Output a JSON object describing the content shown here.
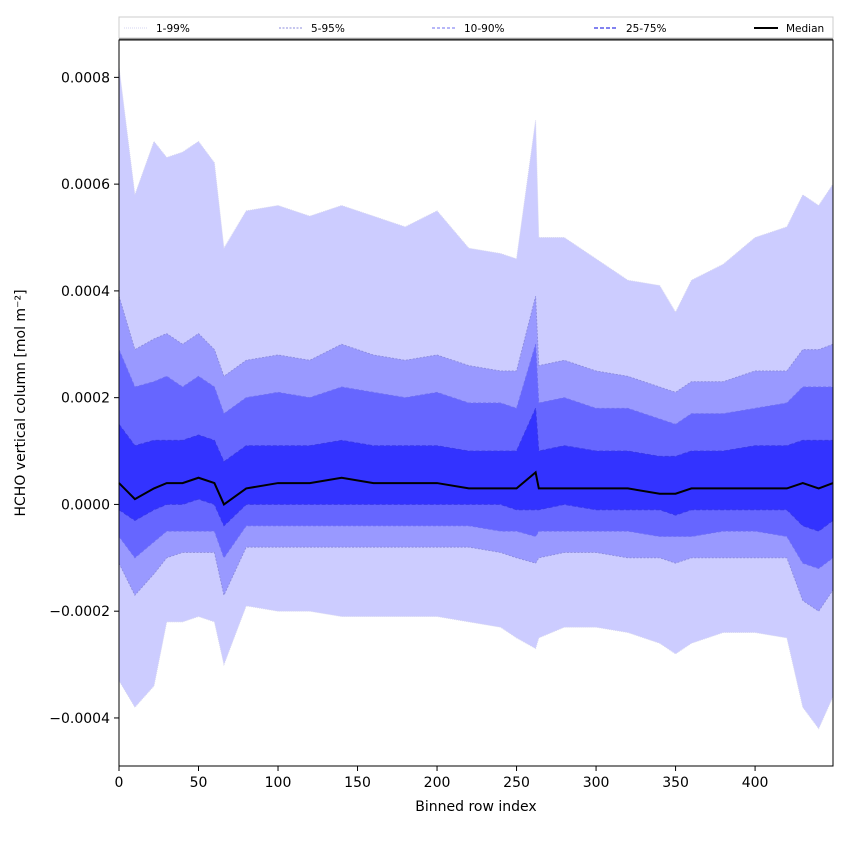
{
  "chart_data": {
    "type": "area",
    "xlabel": "Binned row index",
    "ylabel": "HCHO vertical column [mol m⁻²]",
    "xlim": [
      0,
      449
    ],
    "ylim": [
      -0.00049,
      0.00087
    ],
    "x_ticks": [
      0,
      50,
      100,
      150,
      200,
      250,
      300,
      350,
      400
    ],
    "y_ticks": [
      -0.0004,
      -0.0002,
      0.0,
      0.0002,
      0.0004,
      0.0006,
      0.0008
    ],
    "y_tick_labels": [
      "−0.0004",
      "−0.0002",
      "0.0000",
      "0.0002",
      "0.0004",
      "0.0006",
      "0.0008"
    ],
    "grid": false,
    "legend_position": "top, spanning full width",
    "legend": [
      "1-99%",
      "5-95%",
      "10-90%",
      "25-75%",
      "Median"
    ],
    "colors": {
      "band_1_99": "#ccccff",
      "band_5_95": "#9999ff",
      "band_10_90": "#6666ff",
      "band_25_75": "#3333ff",
      "median": "#000000",
      "line_1_99": "#d6d6f0",
      "line_5_95": "#8c8cdd",
      "line_10_90": "#6f6ff2",
      "line_25_75": "#3838e8"
    },
    "series": [
      {
        "name": "1-99%",
        "x": [
          0,
          10,
          22,
          30,
          40,
          50,
          60,
          66,
          80,
          100,
          120,
          140,
          160,
          180,
          200,
          220,
          240,
          250,
          262,
          264,
          280,
          300,
          320,
          340,
          350,
          360,
          380,
          400,
          420,
          430,
          440,
          449
        ],
        "upper": [
          0.00082,
          0.00058,
          0.00068,
          0.00065,
          0.00066,
          0.00068,
          0.00064,
          0.00048,
          0.00055,
          0.00056,
          0.00054,
          0.00056,
          0.00054,
          0.00052,
          0.00055,
          0.00048,
          0.00047,
          0.00046,
          0.00072,
          0.0005,
          0.0005,
          0.00046,
          0.00042,
          0.00041,
          0.00036,
          0.00042,
          0.00045,
          0.0005,
          0.00052,
          0.00058,
          0.00056,
          0.0006
        ],
        "lower": [
          -0.00033,
          -0.00038,
          -0.00034,
          -0.00022,
          -0.00022,
          -0.00021,
          -0.00022,
          -0.0003,
          -0.00019,
          -0.0002,
          -0.0002,
          -0.00021,
          -0.00021,
          -0.00021,
          -0.00021,
          -0.00022,
          -0.00023,
          -0.00025,
          -0.00027,
          -0.00025,
          -0.00023,
          -0.00023,
          -0.00024,
          -0.00026,
          -0.00028,
          -0.00026,
          -0.00024,
          -0.00024,
          -0.00025,
          -0.00038,
          -0.00042,
          -0.00036
        ]
      },
      {
        "name": "5-95%",
        "x": [
          0,
          10,
          22,
          30,
          40,
          50,
          60,
          66,
          80,
          100,
          120,
          140,
          160,
          180,
          200,
          220,
          240,
          250,
          262,
          264,
          280,
          300,
          320,
          340,
          350,
          360,
          380,
          400,
          420,
          430,
          440,
          449
        ],
        "upper": [
          0.00039,
          0.00029,
          0.00031,
          0.00032,
          0.0003,
          0.00032,
          0.00029,
          0.00024,
          0.00027,
          0.00028,
          0.00027,
          0.0003,
          0.00028,
          0.00027,
          0.00028,
          0.00026,
          0.00025,
          0.00025,
          0.00039,
          0.00026,
          0.00027,
          0.00025,
          0.00024,
          0.00022,
          0.00021,
          0.00023,
          0.00023,
          0.00025,
          0.00025,
          0.00029,
          0.00029,
          0.0003
        ],
        "lower": [
          -0.00011,
          -0.00017,
          -0.00013,
          -0.0001,
          -9e-05,
          -9e-05,
          -9e-05,
          -0.00017,
          -8e-05,
          -8e-05,
          -8e-05,
          -8e-05,
          -8e-05,
          -8e-05,
          -8e-05,
          -8e-05,
          -9e-05,
          -0.0001,
          -0.00011,
          -0.0001,
          -9e-05,
          -9e-05,
          -0.0001,
          -0.0001,
          -0.00011,
          -0.0001,
          -0.0001,
          -0.0001,
          -0.0001,
          -0.00018,
          -0.0002,
          -0.00016
        ]
      },
      {
        "name": "10-90%",
        "x": [
          0,
          10,
          22,
          30,
          40,
          50,
          60,
          66,
          80,
          100,
          120,
          140,
          160,
          180,
          200,
          220,
          240,
          250,
          262,
          264,
          280,
          300,
          320,
          340,
          350,
          360,
          380,
          400,
          420,
          430,
          440,
          449
        ],
        "upper": [
          0.00029,
          0.00022,
          0.00023,
          0.00024,
          0.00022,
          0.00024,
          0.00022,
          0.00017,
          0.0002,
          0.00021,
          0.0002,
          0.00022,
          0.00021,
          0.0002,
          0.00021,
          0.00019,
          0.00019,
          0.00018,
          0.0003,
          0.00019,
          0.0002,
          0.00018,
          0.00018,
          0.00016,
          0.00015,
          0.00017,
          0.00017,
          0.00018,
          0.00019,
          0.00022,
          0.00022,
          0.00022
        ],
        "lower": [
          -6e-05,
          -0.0001,
          -7e-05,
          -5e-05,
          -5e-05,
          -5e-05,
          -5e-05,
          -0.0001,
          -4e-05,
          -4e-05,
          -4e-05,
          -4e-05,
          -4e-05,
          -4e-05,
          -4e-05,
          -4e-05,
          -5e-05,
          -5e-05,
          -6e-05,
          -5e-05,
          -5e-05,
          -5e-05,
          -5e-05,
          -6e-05,
          -6e-05,
          -6e-05,
          -5e-05,
          -5e-05,
          -6e-05,
          -0.00011,
          -0.00012,
          -0.0001
        ]
      },
      {
        "name": "25-75%",
        "x": [
          0,
          10,
          22,
          30,
          40,
          50,
          60,
          66,
          80,
          100,
          120,
          140,
          160,
          180,
          200,
          220,
          240,
          250,
          262,
          264,
          280,
          300,
          320,
          340,
          350,
          360,
          380,
          400,
          420,
          430,
          440,
          449
        ],
        "upper": [
          0.00015,
          0.00011,
          0.00012,
          0.00012,
          0.00012,
          0.00013,
          0.00012,
          8e-05,
          0.00011,
          0.00011,
          0.00011,
          0.00012,
          0.00011,
          0.00011,
          0.00011,
          0.0001,
          0.0001,
          0.0001,
          0.00018,
          0.0001,
          0.00011,
          0.0001,
          0.0001,
          9e-05,
          9e-05,
          0.0001,
          0.0001,
          0.00011,
          0.00011,
          0.00012,
          0.00012,
          0.00012
        ],
        "lower": [
          -1e-05,
          -3e-05,
          -1e-05,
          0.0,
          0.0,
          1e-05,
          0.0,
          -4e-05,
          0.0,
          0.0,
          0.0,
          0.0,
          0.0,
          0.0,
          0.0,
          0.0,
          0.0,
          -1e-05,
          -1e-05,
          -1e-05,
          0.0,
          -1e-05,
          -1e-05,
          -1e-05,
          -2e-05,
          -1e-05,
          -1e-05,
          -1e-05,
          -1e-05,
          -4e-05,
          -5e-05,
          -3e-05
        ]
      },
      {
        "name": "Median",
        "x": [
          0,
          10,
          22,
          30,
          40,
          50,
          60,
          66,
          80,
          100,
          120,
          140,
          160,
          180,
          200,
          220,
          240,
          250,
          262,
          264,
          280,
          300,
          320,
          340,
          350,
          360,
          380,
          400,
          420,
          430,
          440,
          449
        ],
        "values": [
          4e-05,
          1e-05,
          3e-05,
          4e-05,
          4e-05,
          5e-05,
          4e-05,
          0.0,
          3e-05,
          4e-05,
          4e-05,
          5e-05,
          4e-05,
          4e-05,
          4e-05,
          3e-05,
          3e-05,
          3e-05,
          6e-05,
          3e-05,
          3e-05,
          3e-05,
          3e-05,
          2e-05,
          2e-05,
          3e-05,
          3e-05,
          3e-05,
          3e-05,
          4e-05,
          3e-05,
          4e-05
        ]
      }
    ]
  }
}
